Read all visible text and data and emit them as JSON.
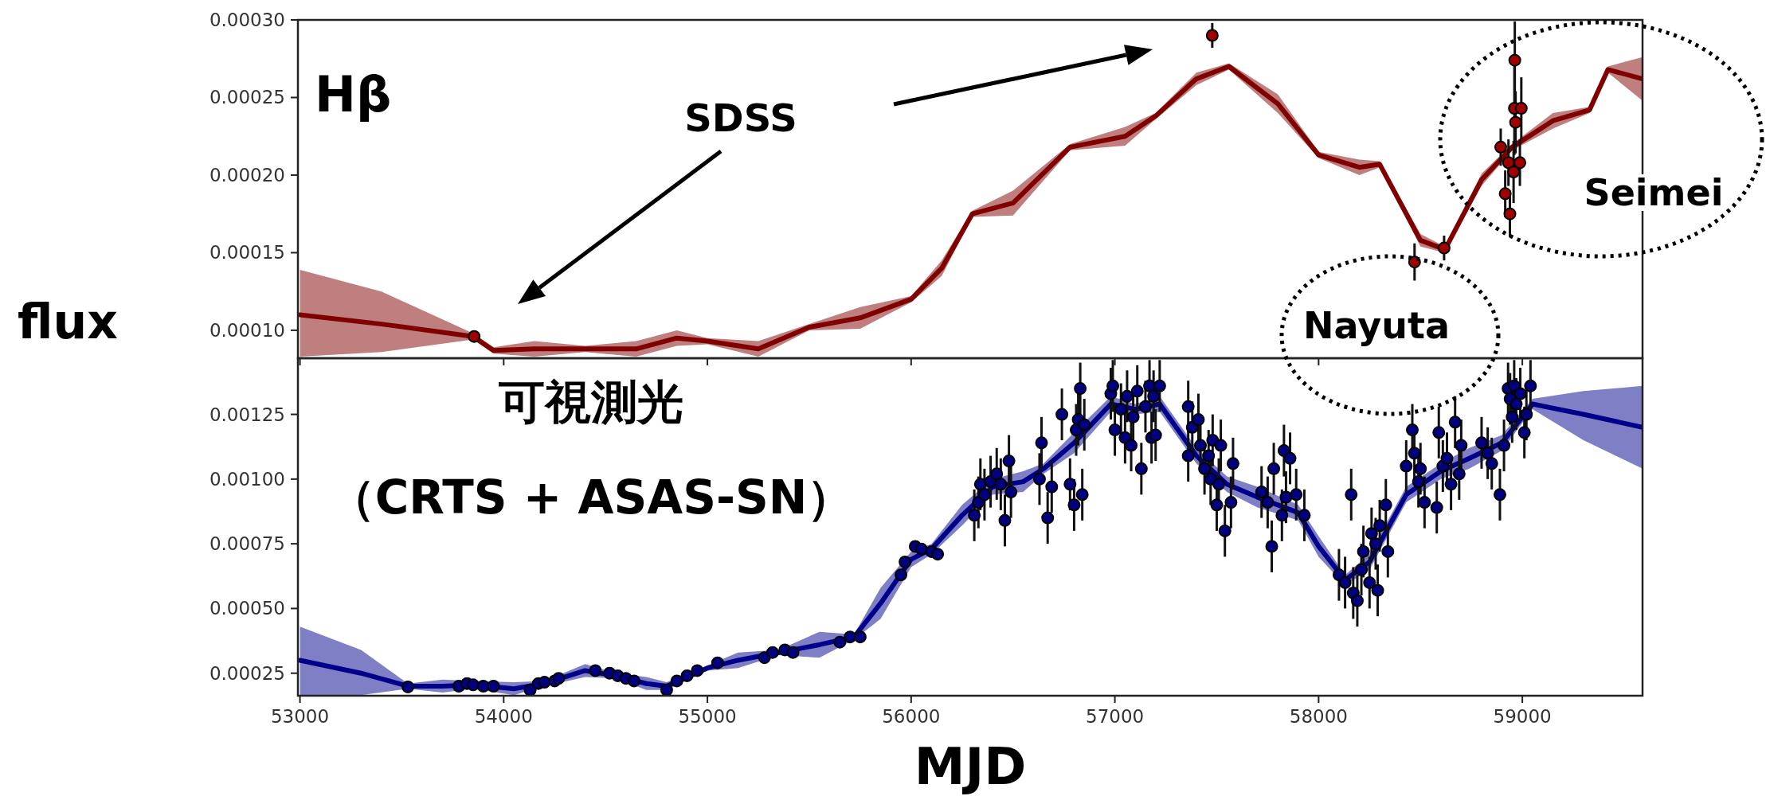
{
  "chart_data": [
    {
      "type": "line",
      "title": "Hβ",
      "ylabel": "flux",
      "annotations": [
        "SDSS",
        "Nayuta",
        "Seimei"
      ],
      "xlim": [
        52990,
        59590
      ],
      "ylim": [
        8.2e-05,
        0.0003
      ],
      "xticks": [
        53000,
        54000,
        55000,
        56000,
        57000,
        58000,
        59000
      ],
      "yticks": [
        {
          "value": 0.0001,
          "label": "0.00010"
        },
        {
          "value": 0.00015,
          "label": "0.00015"
        },
        {
          "value": 0.0002,
          "label": "0.00020"
        },
        {
          "value": 0.00025,
          "label": "0.00025"
        },
        {
          "value": 0.0003,
          "label": "0.00030"
        }
      ],
      "tick_labels": "y",
      "grid": false,
      "series": [
        {
          "color": "#800000",
          "x": [
            53000,
            53400,
            53850,
            53950,
            54150,
            54400,
            54650,
            54850,
            55000,
            55250,
            55500,
            55750,
            56000,
            56150,
            56300,
            56500,
            56780,
            57050,
            57200,
            57400,
            57560,
            57800,
            58000,
            58200,
            58300,
            58500,
            58620,
            58800,
            58950,
            59150,
            59330,
            59420,
            59590
          ],
          "values": [
            0.00011,
            0.000104,
            9.6e-05,
            8.7e-05,
            8.8e-05,
            8.8e-05,
            8.8e-05,
            9.5e-05,
            9.3e-05,
            8.8e-05,
            0.000102,
            0.000108,
            0.00012,
            0.00014,
            0.000175,
            0.000182,
            0.000218,
            0.000225,
            0.000238,
            0.000262,
            0.00027,
            0.000246,
            0.000213,
            0.000205,
            0.000207,
            0.000158,
            0.000152,
            0.000197,
            0.000218,
            0.000235,
            0.000242,
            0.000268,
            0.000262
          ],
          "lower": [
            8.3e-05,
            8.6e-05,
            9.4e-05,
            8.5e-05,
            8.3e-05,
            8.6e-05,
            8.3e-05,
            9e-05,
            9.1e-05,
            8.3e-05,
            0.0001,
            0.000101,
            0.000118,
            0.000135,
            0.000173,
            0.000174,
            0.000216,
            0.000219,
            0.000236,
            0.000258,
            0.000268,
            0.00024,
            0.000211,
            0.0002,
            0.000205,
            0.000154,
            0.00015,
            0.000193,
            0.000216,
            0.00023,
            0.00024,
            0.000266,
            0.000248
          ],
          "upper": [
            0.000139,
            0.000125,
            9.8e-05,
            8.9e-05,
            9.3e-05,
            9e-05,
            9.3e-05,
            0.0001,
            9.5e-05,
            9.3e-05,
            0.000104,
            0.000115,
            0.000122,
            0.000145,
            0.000177,
            0.00019,
            0.00022,
            0.000231,
            0.00024,
            0.000266,
            0.000272,
            0.000252,
            0.000215,
            0.00021,
            0.000209,
            0.000162,
            0.000154,
            0.000201,
            0.00022,
            0.00024,
            0.000244,
            0.00027,
            0.000276
          ]
        },
        {
          "type": "scatter",
          "color": "#a00000",
          "marker": "circle",
          "x": [
            53855,
            57478,
            58471,
            58616,
            58894,
            58916,
            58932,
            58939,
            58957,
            58961,
            58963,
            58967,
            58988,
            58995
          ],
          "values": [
            9.6e-05,
            0.00029,
            0.000144,
            0.000153,
            0.000218,
            0.000188,
            0.000208,
            0.000175,
            0.000202,
            0.000243,
            0.000274,
            0.000234,
            0.000208,
            0.000243
          ],
          "errors": [
            null,
            8e-06,
            1.2e-05,
            8e-06,
            1.2e-05,
            1.5e-05,
            1.5e-05,
            1.5e-05,
            2e-05,
            3e-05,
            2.5e-05,
            2e-05,
            1.5e-05,
            2e-05
          ]
        }
      ]
    },
    {
      "type": "line",
      "title": "可視測光",
      "subtitle": "（CRTS + ASAS-SN）",
      "xlabel": "MJD",
      "xlim": [
        52990,
        59590
      ],
      "ylim": [
        0.000163,
        0.001467
      ],
      "xticks": [
        53000,
        54000,
        55000,
        56000,
        57000,
        58000,
        59000
      ],
      "yticks": [
        {
          "value": 0.00025,
          "label": "0.00025"
        },
        {
          "value": 0.0005,
          "label": "0.00050"
        },
        {
          "value": 0.00075,
          "label": "0.00075"
        },
        {
          "value": 0.001,
          "label": "0.00100"
        },
        {
          "value": 0.00125,
          "label": "0.00125"
        }
      ],
      "grid": false,
      "series": [
        {
          "color": "#00008b",
          "x": [
            53000,
            53300,
            53530,
            53700,
            53850,
            54050,
            54200,
            54400,
            54550,
            54700,
            54800,
            55000,
            55150,
            55350,
            55550,
            55720,
            55850,
            56000,
            56100,
            56250,
            56400,
            56550,
            56650,
            56800,
            56980,
            57100,
            57220,
            57400,
            57550,
            57700,
            57900,
            58000,
            58130,
            58250,
            58430,
            58600,
            58740,
            58900,
            59050,
            59300,
            59590
          ],
          "values": [
            0.0003,
            0.00025,
            0.0002,
            0.0002,
            0.000205,
            0.00019,
            0.00021,
            0.00026,
            0.00024,
            0.00021,
            0.0002,
            0.00027,
            0.0003,
            0.00033,
            0.00036,
            0.00039,
            0.00052,
            0.00069,
            0.00073,
            0.00086,
            0.00097,
            0.00099,
            0.00104,
            0.00114,
            0.00129,
            0.00127,
            0.00129,
            0.00109,
            0.00098,
            0.00093,
            0.00087,
            0.00074,
            0.00061,
            0.00068,
            0.00094,
            0.00103,
            0.00108,
            0.00114,
            0.00129,
            0.00125,
            0.0012
          ],
          "lower": [
            0.000165,
            0.000165,
            0.00019,
            0.000175,
            0.00019,
            0.000165,
            0.0002,
            0.000235,
            0.00023,
            0.000185,
            0.000185,
            0.00026,
            0.00027,
            0.00032,
            0.00031,
            0.00038,
            0.00046,
            0.00066,
            0.00071,
            0.00082,
            0.00094,
            0.00095,
            0.00102,
            0.0011,
            0.00126,
            0.00125,
            0.00126,
            0.00106,
            0.00095,
            0.00089,
            0.00084,
            0.0007,
            0.00059,
            0.00065,
            0.00091,
            0.001,
            0.00104,
            0.00111,
            0.00127,
            0.00115,
            0.00104
          ],
          "upper": [
            0.00043,
            0.00034,
            0.00021,
            0.000225,
            0.00022,
            0.000215,
            0.00022,
            0.000285,
            0.00025,
            0.000235,
            0.000215,
            0.00028,
            0.00033,
            0.00034,
            0.00041,
            0.0004,
            0.00058,
            0.00072,
            0.00075,
            0.0009,
            0.001,
            0.00103,
            0.00106,
            0.00118,
            0.00132,
            0.00129,
            0.00132,
            0.00112,
            0.00101,
            0.00097,
            0.0009,
            0.00078,
            0.00063,
            0.00071,
            0.00097,
            0.00106,
            0.00112,
            0.00117,
            0.00131,
            0.00134,
            0.00136
          ]
        },
        {
          "type": "scatter",
          "color": "#000080",
          "marker": "circle",
          "x": [
            53530,
            53780,
            53820,
            53850,
            53900,
            53950,
            54130,
            54170,
            54200,
            54250,
            54270,
            54450,
            54520,
            54560,
            54600,
            54640,
            54800,
            54850,
            54900,
            54950,
            55050,
            55280,
            55320,
            55380,
            55420,
            55650,
            55700,
            55750,
            55950,
            55970,
            56020,
            56050,
            56100,
            56130,
            56310,
            56330,
            56340,
            56360,
            56390,
            56420,
            56440,
            56460,
            56480,
            56490,
            56630,
            56640,
            56670,
            56690,
            56740,
            56780,
            56800,
            56810,
            56820,
            56830,
            56840,
            56850,
            56980,
            56990,
            57000,
            57030,
            57050,
            57060,
            57080,
            57090,
            57110,
            57130,
            57150,
            57170,
            57180,
            57190,
            57200,
            57220,
            57360,
            57360,
            57380,
            57410,
            57420,
            57440,
            57460,
            57470,
            57480,
            57500,
            57510,
            57520,
            57540,
            57570,
            57580,
            57720,
            57750,
            57770,
            57780,
            57820,
            57830,
            57840,
            57860,
            57890,
            57930,
            58100,
            58130,
            58160,
            58170,
            58190,
            58210,
            58220,
            58250,
            58260,
            58280,
            58290,
            58300,
            58330,
            58340,
            58430,
            58460,
            58470,
            58490,
            58500,
            58520,
            58580,
            58590,
            58610,
            58630,
            58650,
            58670,
            58700,
            58690,
            58800,
            58830,
            58850,
            58890,
            58910,
            58930,
            58940,
            58950,
            58960,
            58970,
            58990,
            59010,
            59020,
            59040
          ],
          "values": [
            0.000197,
            0.0002,
            0.00021,
            0.000205,
            0.0002,
            0.0002,
            0.000185,
            0.00021,
            0.000215,
            0.00022,
            0.00023,
            0.00026,
            0.00025,
            0.00024,
            0.00023,
            0.00022,
            0.000185,
            0.00022,
            0.00024,
            0.00026,
            0.00029,
            0.00031,
            0.00033,
            0.00034,
            0.00033,
            0.00037,
            0.00039,
            0.00039,
            0.00063,
            0.00068,
            0.00074,
            0.00073,
            0.00072,
            0.00071,
            0.00086,
            0.00091,
            0.00098,
            0.00094,
            0.00099,
            0.00102,
            0.00098,
            0.00084,
            0.00107,
            0.00095,
            0.001,
            0.00114,
            0.00085,
            0.00097,
            0.00125,
            0.00098,
            0.0009,
            0.00119,
            0.00123,
            0.00135,
            0.00094,
            0.00121,
            0.00133,
            0.00136,
            0.00119,
            0.00127,
            0.00116,
            0.00132,
            0.00113,
            0.00124,
            0.00134,
            0.00104,
            0.00128,
            0.00136,
            0.00116,
            0.00132,
            0.00117,
            0.00136,
            0.00128,
            0.00109,
            0.0012,
            0.00123,
            0.00113,
            0.00104,
            0.00109,
            0.001,
            0.00115,
            0.0009,
            0.00098,
            0.00113,
            0.0008,
            0.00091,
            0.00106,
            0.00095,
            0.00091,
            0.00074,
            0.00104,
            0.00086,
            0.00111,
            0.00093,
            0.00108,
            0.00094,
            0.00086,
            0.00063,
            0.0006,
            0.00094,
            0.00056,
            0.00053,
            0.00065,
            0.00072,
            0.0006,
            0.00079,
            0.00075,
            0.00057,
            0.00082,
            0.0009,
            0.00072,
            0.00105,
            0.00119,
            0.0011,
            0.00099,
            0.00104,
            0.00091,
            0.00089,
            0.00118,
            0.00105,
            0.00108,
            0.00098,
            0.00122,
            0.00113,
            0.00102,
            0.00114,
            0.0011,
            0.00106,
            0.00094,
            0.00113,
            0.00135,
            0.00131,
            0.00124,
            0.00136,
            0.00129,
            0.00133,
            0.00118,
            0.00125,
            0.00136
          ],
          "errors": [
            null,
            null,
            null,
            null,
            null,
            null,
            null,
            null,
            null,
            null,
            null,
            null,
            null,
            null,
            null,
            null,
            null,
            null,
            null,
            null,
            null,
            null,
            null,
            null,
            null,
            null,
            null,
            null,
            null,
            null,
            null,
            null,
            null,
            null,
            0.0001,
            0.0001,
            0.0001,
            0.0001,
            0.0001,
            0.0001,
            0.0001,
            0.0001,
            0.0001,
            0.0001,
            0.0001,
            0.0001,
            0.0001,
            0.0001,
            0.0001,
            0.0001,
            0.0001,
            0.0001,
            0.0001,
            0.0001,
            0.0001,
            0.0001,
            0.0001,
            0.0001,
            0.0001,
            0.0001,
            0.0001,
            0.0001,
            0.0001,
            0.0001,
            0.0001,
            0.0001,
            0.0001,
            0.0001,
            0.0001,
            0.0001,
            0.0001,
            0.0001,
            0.0001,
            0.0001,
            0.0001,
            0.0001,
            0.0001,
            0.0001,
            0.0001,
            0.0001,
            0.0001,
            0.0001,
            0.0001,
            0.0001,
            0.0001,
            0.0001,
            0.0001,
            0.0001,
            0.0001,
            0.0001,
            0.0001,
            0.0001,
            0.0001,
            0.0001,
            0.0001,
            0.0001,
            0.0001,
            0.0001,
            0.0001,
            0.0001,
            0.0001,
            0.0001,
            0.0001,
            0.0001,
            0.0001,
            0.0001,
            0.0001,
            0.0001,
            0.0001,
            0.0001,
            0.0001,
            0.0001,
            0.0001,
            0.0001,
            0.0001,
            0.0001,
            0.0001,
            0.0001,
            0.0001,
            0.0001,
            0.0001,
            0.0001,
            0.0001,
            0.0001,
            0.0001,
            0.0001,
            0.0001,
            0.0001,
            0.0001,
            0.0001,
            0.0001,
            0.0001,
            0.0001,
            0.0001,
            0.0001,
            0.0001,
            0.0001,
            0.0001,
            0.0001
          ]
        }
      ]
    }
  ]
}
